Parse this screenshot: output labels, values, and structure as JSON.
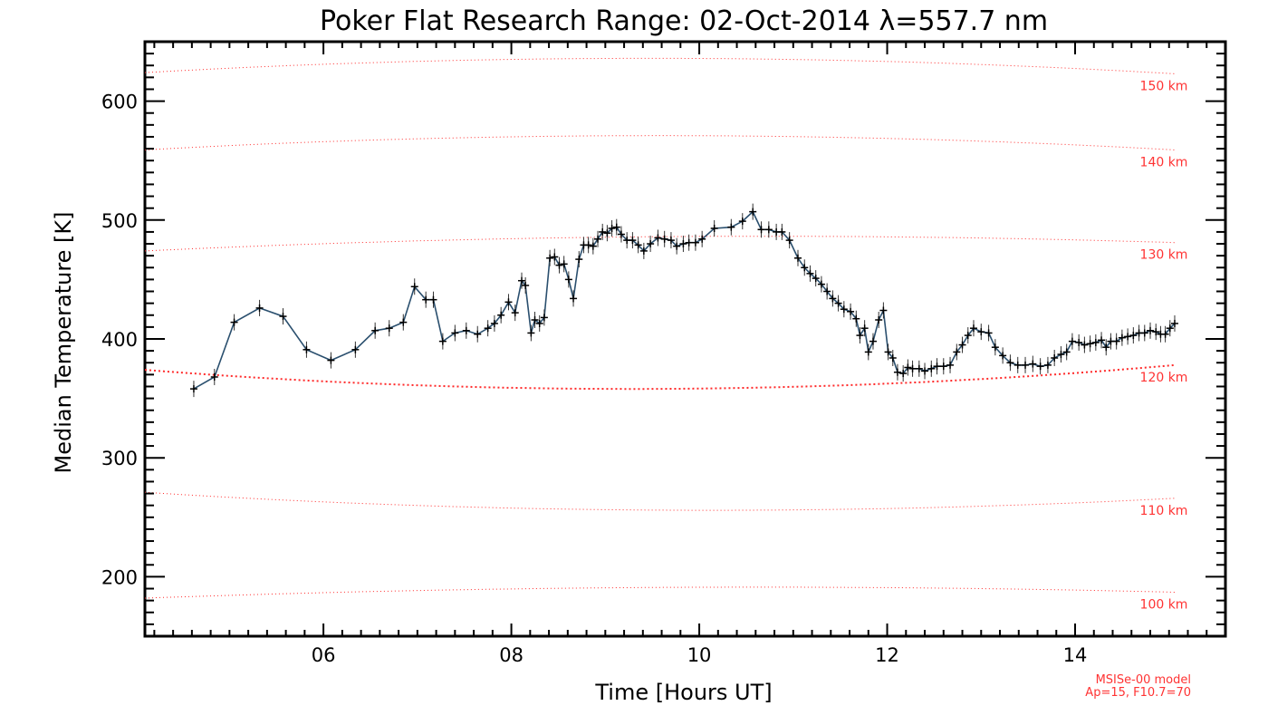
{
  "chart_data": {
    "type": "line",
    "title": "Poker Flat Research Range: 02-Oct-2014 λ=557.7 nm",
    "xlabel": "Time [Hours UT]",
    "ylabel": "Median Temperature [K]",
    "xlim": [
      4.1,
      15.6
    ],
    "ylim": [
      150,
      650
    ],
    "x_ticks": [
      {
        "value": 6,
        "label": "06"
      },
      {
        "value": 8,
        "label": "08"
      },
      {
        "value": 10,
        "label": "10"
      },
      {
        "value": 12,
        "label": "12"
      },
      {
        "value": 14,
        "label": "14"
      }
    ],
    "y_ticks": [
      {
        "value": 200,
        "label": "200"
      },
      {
        "value": 300,
        "label": "300"
      },
      {
        "value": 400,
        "label": "400"
      },
      {
        "value": 500,
        "label": "500"
      },
      {
        "value": 600,
        "label": "600"
      }
    ],
    "grid": false,
    "colors": {
      "series": "#2a4f6e",
      "marker": "#000000",
      "model": "#ff2a2a",
      "axes": "#000000"
    },
    "series": [
      {
        "points": [
          [
            4.62,
            358
          ],
          [
            4.84,
            368
          ],
          [
            5.05,
            414
          ],
          [
            5.32,
            426
          ],
          [
            5.57,
            419
          ],
          [
            5.82,
            391
          ],
          [
            6.08,
            382
          ],
          [
            6.34,
            391
          ],
          [
            6.55,
            407
          ],
          [
            6.7,
            409
          ],
          [
            6.85,
            414
          ],
          [
            6.97,
            444
          ],
          [
            7.09,
            433
          ],
          [
            7.17,
            433
          ],
          [
            7.27,
            398
          ],
          [
            7.4,
            405
          ],
          [
            7.52,
            407
          ],
          [
            7.64,
            404
          ],
          [
            7.75,
            409
          ],
          [
            7.82,
            413
          ],
          [
            7.89,
            420
          ],
          [
            7.97,
            431
          ],
          [
            8.04,
            422
          ],
          [
            8.11,
            449
          ],
          [
            8.15,
            445
          ],
          [
            8.21,
            405
          ],
          [
            8.25,
            416
          ],
          [
            8.3,
            413
          ],
          [
            8.35,
            418
          ],
          [
            8.41,
            468
          ],
          [
            8.46,
            469
          ],
          [
            8.51,
            462
          ],
          [
            8.56,
            463
          ],
          [
            8.61,
            450
          ],
          [
            8.66,
            434
          ],
          [
            8.72,
            467
          ],
          [
            8.77,
            479
          ],
          [
            8.82,
            479
          ],
          [
            8.87,
            478
          ],
          [
            8.92,
            484
          ],
          [
            8.97,
            490
          ],
          [
            9.02,
            489
          ],
          [
            9.07,
            493
          ],
          [
            9.12,
            494
          ],
          [
            9.17,
            488
          ],
          [
            9.23,
            483
          ],
          [
            9.29,
            483
          ],
          [
            9.35,
            479
          ],
          [
            9.41,
            474
          ],
          [
            9.48,
            480
          ],
          [
            9.56,
            485
          ],
          [
            9.63,
            484
          ],
          [
            9.7,
            483
          ],
          [
            9.76,
            478
          ],
          [
            9.83,
            480
          ],
          [
            9.89,
            481
          ],
          [
            9.96,
            481
          ],
          [
            10.03,
            484
          ],
          [
            10.16,
            493
          ],
          [
            10.34,
            494
          ],
          [
            10.46,
            499
          ],
          [
            10.57,
            507
          ],
          [
            10.66,
            492
          ],
          [
            10.74,
            492
          ],
          [
            10.82,
            490
          ],
          [
            10.88,
            490
          ],
          [
            10.96,
            483
          ],
          [
            11.05,
            468
          ],
          [
            11.12,
            460
          ],
          [
            11.18,
            455
          ],
          [
            11.24,
            451
          ],
          [
            11.3,
            446
          ],
          [
            11.36,
            440
          ],
          [
            11.42,
            434
          ],
          [
            11.48,
            430
          ],
          [
            11.54,
            425
          ],
          [
            11.61,
            423
          ],
          [
            11.67,
            417
          ],
          [
            11.71,
            403
          ],
          [
            11.76,
            409
          ],
          [
            11.8,
            389
          ],
          [
            11.85,
            398
          ],
          [
            11.91,
            416
          ],
          [
            11.96,
            424
          ],
          [
            12.01,
            389
          ],
          [
            12.06,
            384
          ],
          [
            12.11,
            372
          ],
          [
            12.17,
            371
          ],
          [
            12.22,
            376
          ],
          [
            12.27,
            375
          ],
          [
            12.34,
            375
          ],
          [
            12.4,
            373
          ],
          [
            12.47,
            375
          ],
          [
            12.53,
            377
          ],
          [
            12.6,
            377
          ],
          [
            12.67,
            378
          ],
          [
            12.74,
            389
          ],
          [
            12.8,
            395
          ],
          [
            12.86,
            403
          ],
          [
            12.92,
            409
          ],
          [
            13.0,
            406
          ],
          [
            13.08,
            405
          ],
          [
            13.15,
            393
          ],
          [
            13.23,
            386
          ],
          [
            13.31,
            380
          ],
          [
            13.39,
            378
          ],
          [
            13.47,
            378
          ],
          [
            13.55,
            379
          ],
          [
            13.63,
            377
          ],
          [
            13.71,
            378
          ],
          [
            13.78,
            384
          ],
          [
            13.85,
            387
          ],
          [
            13.91,
            389
          ],
          [
            13.97,
            398
          ],
          [
            14.04,
            397
          ],
          [
            14.1,
            395
          ],
          [
            14.16,
            396
          ],
          [
            14.22,
            397
          ],
          [
            14.28,
            399
          ],
          [
            14.33,
            393
          ],
          [
            14.38,
            398
          ],
          [
            14.44,
            398
          ],
          [
            14.5,
            401
          ],
          [
            14.56,
            402
          ],
          [
            14.62,
            403
          ],
          [
            14.68,
            405
          ],
          [
            14.74,
            405
          ],
          [
            14.8,
            407
          ],
          [
            14.86,
            406
          ],
          [
            14.91,
            404
          ],
          [
            14.96,
            404
          ],
          [
            15.01,
            409
          ],
          [
            15.06,
            413
          ]
        ]
      }
    ],
    "model_curves": [
      {
        "label": "150 km",
        "y_start": 624,
        "y_mid": 636,
        "y_end": 623
      },
      {
        "label": "140 km",
        "y_start": 559,
        "y_mid": 571,
        "y_end": 559
      },
      {
        "label": "130 km",
        "y_start": 474,
        "y_mid": 486,
        "y_end": 481
      },
      {
        "label": "120 km",
        "y_start": 374,
        "y_mid": 358,
        "y_end": 378
      },
      {
        "label": "110 km",
        "y_start": 271,
        "y_mid": 256,
        "y_end": 266
      },
      {
        "label": "100 km",
        "y_start": 182,
        "y_mid": 191,
        "y_end": 187
      }
    ],
    "model_x_start": 4.1,
    "model_x_end": 15.06,
    "notes": [
      "MSISe-00 model",
      "Ap=15, F10.7=70"
    ]
  }
}
